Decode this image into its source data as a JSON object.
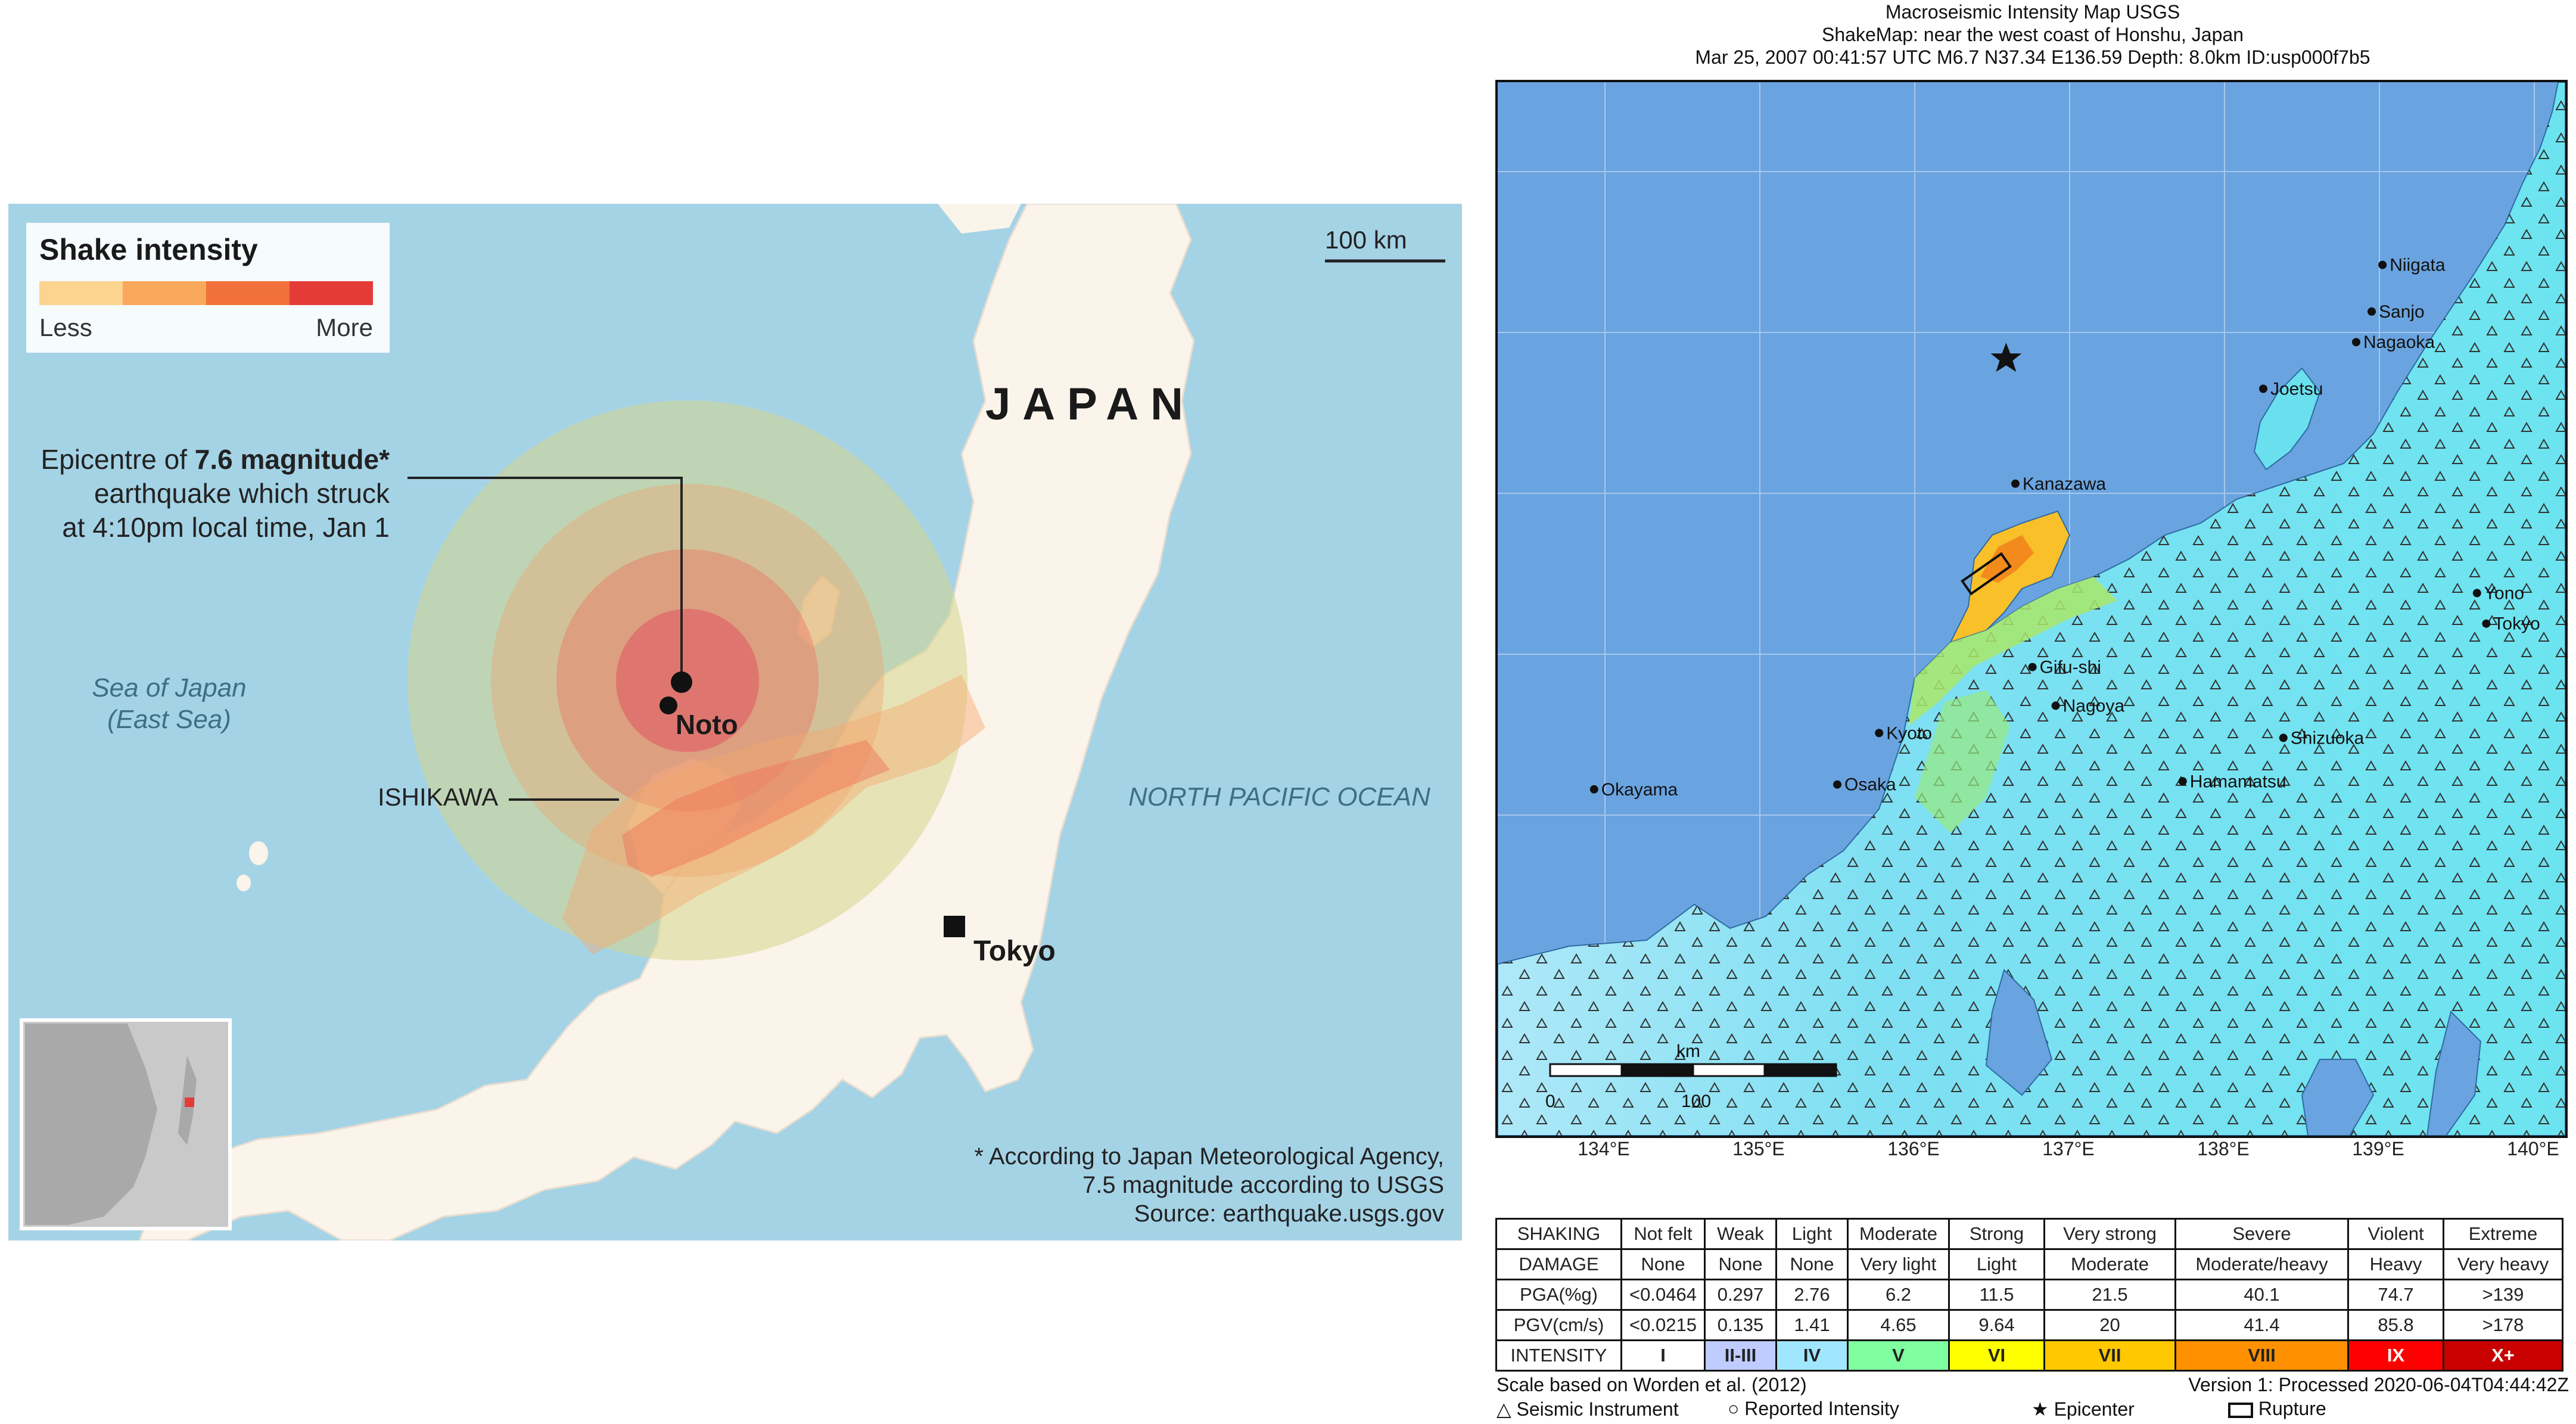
{
  "left_map": {
    "legend": {
      "title": "Shake intensity",
      "less": "Less",
      "more": "More",
      "colors": [
        "#fcd38f",
        "#f9a85c",
        "#f2703a",
        "#e53b36"
      ]
    },
    "scale_bar": "100 km",
    "country_label": "JAPAN",
    "epicentre_note": {
      "line1_prefix": "Epicentre of ",
      "line1_bold": "7.6 magnitude*",
      "line2": "earthquake which struck",
      "line3": "at 4:10pm local time, Jan 1"
    },
    "sea_of_japan": {
      "line1": "Sea of Japan",
      "line2": "(East Sea)"
    },
    "ocean_label": "NORTH PACIFIC OCEAN",
    "ishikawa_label": "ISHIKAWA",
    "noto_label": "Noto",
    "tokyo_label": "Tokyo",
    "footnote": {
      "line1": "* According to Japan Meteorological Agency,",
      "line2": "7.5 magnitude according to USGS",
      "line3": "Source: earthquake.usgs.gov"
    }
  },
  "right_map": {
    "title": "Macroseismic Intensity Map USGS",
    "subtitle": "ShakeMap: near the west coast of Honshu, Japan",
    "event_line": "Mar 25, 2007 00:41:57 UTC M6.7 N37.34 E136.59 Depth: 8.0km ID:usp000f7b5",
    "cities": [
      {
        "name": "Niigata",
        "lon": 139.02,
        "lat": 37.92
      },
      {
        "name": "Sanjo",
        "lon": 138.95,
        "lat": 37.63
      },
      {
        "name": "Nagaoka",
        "lon": 138.85,
        "lat": 37.44
      },
      {
        "name": "Joetsu",
        "lon": 138.25,
        "lat": 37.15
      },
      {
        "name": "Kanazawa",
        "lon": 136.65,
        "lat": 36.56
      },
      {
        "name": "Yono",
        "lon": 139.63,
        "lat": 35.88
      },
      {
        "name": "Tokyo",
        "lon": 139.69,
        "lat": 35.69
      },
      {
        "name": "Gifu-shi",
        "lon": 136.76,
        "lat": 35.42
      },
      {
        "name": "Nagoya",
        "lon": 136.91,
        "lat": 35.18
      },
      {
        "name": "Kyoto",
        "lon": 135.77,
        "lat": 35.01
      },
      {
        "name": "Shizuoka",
        "lon": 138.38,
        "lat": 34.98
      },
      {
        "name": "Osaka",
        "lon": 135.5,
        "lat": 34.69
      },
      {
        "name": "Okayama",
        "lon": 133.93,
        "lat": 34.66
      },
      {
        "name": "Hamamatsu",
        "lon": 137.73,
        "lat": 34.71
      }
    ],
    "epicenter": {
      "lon": 136.59,
      "lat": 37.34
    },
    "longitude_labels": [
      "134°E",
      "135°E",
      "136°E",
      "137°E",
      "138°E",
      "139°E",
      "140°E"
    ],
    "scale_bar": {
      "unit": "km",
      "ticks": [
        "0",
        "100"
      ]
    },
    "table": {
      "rows": [
        {
          "head": "SHAKING",
          "cells": [
            "Not felt",
            "Weak",
            "Light",
            "Moderate",
            "Strong",
            "Very strong",
            "Severe",
            "Violent",
            "Extreme"
          ]
        },
        {
          "head": "DAMAGE",
          "cells": [
            "None",
            "None",
            "None",
            "Very light",
            "Light",
            "Moderate",
            "Moderate/heavy",
            "Heavy",
            "Very heavy"
          ]
        },
        {
          "head": "PGA(%g)",
          "cells": [
            "<0.0464",
            "0.297",
            "2.76",
            "6.2",
            "11.5",
            "21.5",
            "40.1",
            "74.7",
            ">139"
          ]
        },
        {
          "head": "PGV(cm/s)",
          "cells": [
            "<0.0215",
            "0.135",
            "1.41",
            "4.65",
            "9.64",
            "20",
            "41.4",
            "85.8",
            ">178"
          ]
        }
      ],
      "intensity_head": "INTENSITY",
      "intensity": [
        "I",
        "II-III",
        "IV",
        "V",
        "VI",
        "VII",
        "VIII",
        "IX",
        "X+"
      ],
      "intensity_colors": [
        "#ffffff",
        "#bfccff",
        "#a0e6ff",
        "#80ffa0",
        "#ffff00",
        "#ffc800",
        "#ff9100",
        "#ff0000",
        "#c80000"
      ]
    },
    "footer": {
      "left1": "Scale based on Worden et al. (2012)",
      "right1": "Version 1: Processed 2020-06-04T04:44:42Z",
      "legend_instrument": "Seismic Instrument",
      "legend_reported": "Reported Intensity",
      "legend_epicenter": "Epicenter",
      "legend_rupture": "Rupture"
    }
  }
}
